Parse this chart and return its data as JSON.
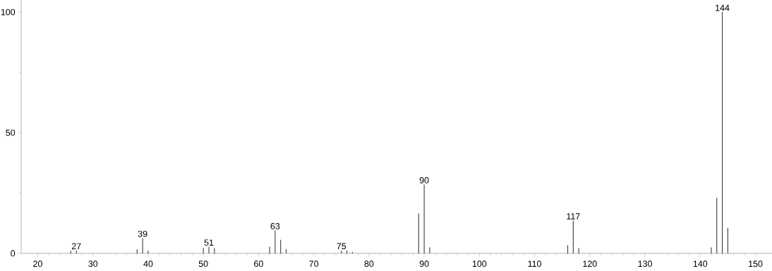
{
  "chart_data": {
    "type": "bar",
    "color": "#3c3c3c",
    "x": [
      26,
      27,
      38,
      39,
      40,
      50,
      51,
      52,
      62,
      63,
      64,
      65,
      75,
      76,
      77,
      89,
      90,
      91,
      116,
      117,
      118,
      142,
      143,
      144,
      145
    ],
    "values": [
      1.0,
      1.2,
      1.7,
      6.3,
      1.2,
      2.2,
      2.7,
      2.2,
      2.7,
      9.5,
      5.6,
      1.7,
      1.2,
      1.2,
      0.6,
      16.5,
      28.5,
      2.5,
      3.4,
      13.6,
      2.2,
      2.5,
      23,
      100,
      10.5
    ],
    "xlim": [
      17,
      153
    ],
    "ylim": [
      0,
      105
    ],
    "xticks": [
      20,
      30,
      40,
      50,
      60,
      70,
      80,
      90,
      100,
      110,
      120,
      130,
      140,
      150
    ],
    "yticks": [
      0,
      50,
      100
    ],
    "annotations": [
      {
        "text": "27",
        "x": 27,
        "y": 1.2
      },
      {
        "text": "39",
        "x": 39,
        "y": 6.3
      },
      {
        "text": "51",
        "x": 51,
        "y": 2.7
      },
      {
        "text": "63",
        "x": 63,
        "y": 9.5
      },
      {
        "text": "75",
        "x": 75,
        "y": 1.2
      },
      {
        "text": "90",
        "x": 90,
        "y": 28.5
      },
      {
        "text": "117",
        "x": 117,
        "y": 13.6
      },
      {
        "text": "144",
        "x": 144,
        "y": 100
      }
    ]
  }
}
